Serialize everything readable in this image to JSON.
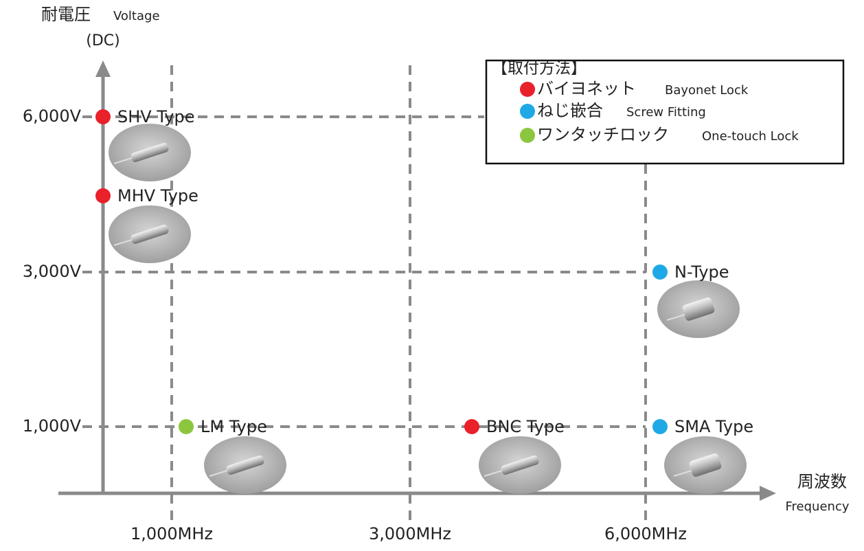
{
  "y_axis": {
    "title": "耐電圧",
    "title_en": "Voltage",
    "unit": "(DC)",
    "ticks": [
      "6,000V",
      "3,000V",
      "1,000V"
    ]
  },
  "x_axis": {
    "title": "周波数",
    "title_en": "Frequency",
    "ticks": [
      "1,000MHz",
      "3,000MHz",
      "6,000MHz"
    ]
  },
  "legend": {
    "title": "【取付方法】",
    "items": [
      {
        "label": "バイヨネット",
        "label_en": "Bayonet Lock",
        "color": "#e8212b"
      },
      {
        "label": "ねじ嵌合",
        "label_en": "Screw Fitting",
        "color": "#1ea9e6"
      },
      {
        "label": "ワンタッチロック",
        "label_en": "One-touch Lock",
        "color": "#8cc63f"
      }
    ]
  },
  "connectors": [
    {
      "name": "SHV Type",
      "mount": 0
    },
    {
      "name": "MHV Type",
      "mount": 0
    },
    {
      "name": "N-Type",
      "mount": 1
    },
    {
      "name": "LM Type",
      "mount": 2
    },
    {
      "name": "BNC Type",
      "mount": 0
    },
    {
      "name": "SMA Type",
      "mount": 1
    }
  ]
}
